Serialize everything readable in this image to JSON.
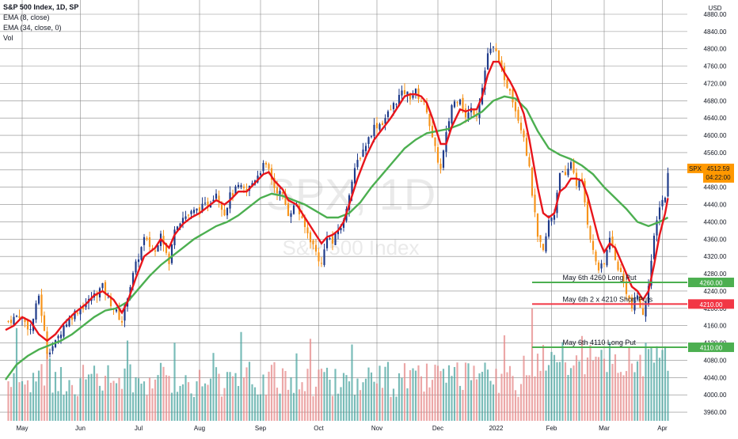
{
  "chart_data": {
    "type": "candlestick",
    "title": "S&P 500 Index, 1D, SP",
    "indicators": [
      "EMA (8, close)",
      "EMA (34, close, 0)",
      "Vol"
    ],
    "watermark": {
      "symbol": "SPX, 1D",
      "name": "S&P 500 Index"
    },
    "y_axis": {
      "unit": "USD",
      "ylim": [
        3940,
        4880
      ],
      "ticks": [
        "4880.00",
        "4840.00",
        "4800.00",
        "4760.00",
        "4720.00",
        "4680.00",
        "4640.00",
        "4600.00",
        "4560.00",
        "4520.00",
        "4480.00",
        "4440.00",
        "4400.00",
        "4360.00",
        "4320.00",
        "4280.00",
        "4240.00",
        "4200.00",
        "4160.00",
        "4120.00",
        "4080.00",
        "4040.00",
        "4000.00",
        "3960.00"
      ]
    },
    "x_axis": {
      "labels": [
        {
          "label": "May",
          "t": 5
        },
        {
          "label": "Jun",
          "t": 26
        },
        {
          "label": "Jul",
          "t": 47
        },
        {
          "label": "Aug",
          "t": 69
        },
        {
          "label": "Sep",
          "t": 91
        },
        {
          "label": "Oct",
          "t": 112
        },
        {
          "label": "Nov",
          "t": 133
        },
        {
          "label": "Dec",
          "t": 155
        },
        {
          "label": "2022",
          "t": 176
        },
        {
          "label": "Feb",
          "t": 196
        },
        {
          "label": "Mar",
          "t": 215
        },
        {
          "label": "Apr",
          "t": 236
        }
      ],
      "t_range": [
        -3,
        245
      ]
    },
    "price_anchors": [
      [
        0,
        4170
      ],
      [
        4,
        4185
      ],
      [
        8,
        4150
      ],
      [
        11,
        4230
      ],
      [
        14,
        4100
      ],
      [
        17,
        4120
      ],
      [
        20,
        4160
      ],
      [
        24,
        4190
      ],
      [
        28,
        4210
      ],
      [
        31,
        4230
      ],
      [
        34,
        4250
      ],
      [
        38,
        4200
      ],
      [
        41,
        4170
      ],
      [
        43,
        4230
      ],
      [
        46,
        4300
      ],
      [
        49,
        4360
      ],
      [
        53,
        4330
      ],
      [
        55,
        4380
      ],
      [
        58,
        4300
      ],
      [
        60,
        4390
      ],
      [
        63,
        4410
      ],
      [
        66,
        4420
      ],
      [
        69,
        4430
      ],
      [
        72,
        4440
      ],
      [
        75,
        4470
      ],
      [
        78,
        4420
      ],
      [
        80,
        4460
      ],
      [
        83,
        4480
      ],
      [
        86,
        4470
      ],
      [
        89,
        4500
      ],
      [
        92,
        4530
      ],
      [
        94,
        4520
      ],
      [
        96,
        4480
      ],
      [
        99,
        4460
      ],
      [
        101,
        4420
      ],
      [
        104,
        4440
      ],
      [
        106,
        4400
      ],
      [
        109,
        4360
      ],
      [
        111,
        4330
      ],
      [
        113,
        4300
      ],
      [
        115,
        4370
      ],
      [
        117,
        4350
      ],
      [
        119,
        4380
      ],
      [
        121,
        4400
      ],
      [
        123,
        4470
      ],
      [
        126,
        4540
      ],
      [
        129,
        4580
      ],
      [
        132,
        4620
      ],
      [
        135,
        4630
      ],
      [
        138,
        4660
      ],
      [
        141,
        4690
      ],
      [
        143,
        4700
      ],
      [
        145,
        4690
      ],
      [
        147,
        4700
      ],
      [
        149,
        4680
      ],
      [
        151,
        4660
      ],
      [
        153,
        4590
      ],
      [
        156,
        4520
      ],
      [
        158,
        4600
      ],
      [
        160,
        4670
      ],
      [
        163,
        4690
      ],
      [
        165,
        4640
      ],
      [
        167,
        4660
      ],
      [
        169,
        4650
      ],
      [
        171,
        4710
      ],
      [
        173,
        4790
      ],
      [
        175,
        4800
      ],
      [
        177,
        4780
      ],
      [
        179,
        4720
      ],
      [
        181,
        4710
      ],
      [
        183,
        4660
      ],
      [
        186,
        4600
      ],
      [
        188,
        4520
      ],
      [
        191,
        4360
      ],
      [
        193,
        4330
      ],
      [
        195,
        4400
      ],
      [
        197,
        4420
      ],
      [
        199,
        4520
      ],
      [
        201,
        4500
      ],
      [
        203,
        4540
      ],
      [
        205,
        4490
      ],
      [
        207,
        4490
      ],
      [
        209,
        4400
      ],
      [
        211,
        4330
      ],
      [
        213,
        4290
      ],
      [
        215,
        4300
      ],
      [
        217,
        4370
      ],
      [
        219,
        4310
      ],
      [
        221,
        4280
      ],
      [
        223,
        4240
      ],
      [
        225,
        4200
      ],
      [
        227,
        4230
      ],
      [
        229,
        4180
      ],
      [
        231,
        4260
      ],
      [
        233,
        4360
      ],
      [
        235,
        4440
      ],
      [
        237,
        4460
      ],
      [
        238,
        4510
      ]
    ],
    "ema8": [
      [
        -1,
        4150
      ],
      [
        2,
        4160
      ],
      [
        5,
        4180
      ],
      [
        8,
        4170
      ],
      [
        11,
        4140
      ],
      [
        14,
        4125
      ],
      [
        17,
        4140
      ],
      [
        20,
        4165
      ],
      [
        24,
        4190
      ],
      [
        28,
        4210
      ],
      [
        31,
        4230
      ],
      [
        34,
        4240
      ],
      [
        38,
        4220
      ],
      [
        41,
        4190
      ],
      [
        43,
        4215
      ],
      [
        46,
        4270
      ],
      [
        49,
        4320
      ],
      [
        53,
        4340
      ],
      [
        55,
        4360
      ],
      [
        58,
        4340
      ],
      [
        60,
        4370
      ],
      [
        63,
        4395
      ],
      [
        66,
        4410
      ],
      [
        69,
        4420
      ],
      [
        72,
        4435
      ],
      [
        75,
        4450
      ],
      [
        78,
        4440
      ],
      [
        80,
        4450
      ],
      [
        83,
        4470
      ],
      [
        86,
        4470
      ],
      [
        89,
        4490
      ],
      [
        92,
        4510
      ],
      [
        94,
        4515
      ],
      [
        96,
        4495
      ],
      [
        99,
        4475
      ],
      [
        101,
        4450
      ],
      [
        104,
        4440
      ],
      [
        106,
        4420
      ],
      [
        109,
        4390
      ],
      [
        111,
        4370
      ],
      [
        113,
        4350
      ],
      [
        115,
        4365
      ],
      [
        117,
        4370
      ],
      [
        119,
        4380
      ],
      [
        121,
        4400
      ],
      [
        123,
        4440
      ],
      [
        126,
        4500
      ],
      [
        129,
        4550
      ],
      [
        132,
        4590
      ],
      [
        135,
        4615
      ],
      [
        138,
        4640
      ],
      [
        141,
        4670
      ],
      [
        143,
        4690
      ],
      [
        145,
        4695
      ],
      [
        147,
        4695
      ],
      [
        149,
        4690
      ],
      [
        151,
        4675
      ],
      [
        153,
        4640
      ],
      [
        156,
        4580
      ],
      [
        158,
        4580
      ],
      [
        160,
        4620
      ],
      [
        163,
        4660
      ],
      [
        165,
        4655
      ],
      [
        167,
        4660
      ],
      [
        169,
        4660
      ],
      [
        171,
        4690
      ],
      [
        173,
        4740
      ],
      [
        175,
        4770
      ],
      [
        177,
        4770
      ],
      [
        179,
        4745
      ],
      [
        181,
        4725
      ],
      [
        183,
        4700
      ],
      [
        186,
        4650
      ],
      [
        188,
        4590
      ],
      [
        191,
        4480
      ],
      [
        193,
        4420
      ],
      [
        195,
        4410
      ],
      [
        197,
        4420
      ],
      [
        199,
        4470
      ],
      [
        201,
        4480
      ],
      [
        203,
        4500
      ],
      [
        205,
        4500
      ],
      [
        207,
        4495
      ],
      [
        209,
        4460
      ],
      [
        211,
        4410
      ],
      [
        213,
        4360
      ],
      [
        215,
        4330
      ],
      [
        217,
        4350
      ],
      [
        219,
        4340
      ],
      [
        221,
        4310
      ],
      [
        223,
        4280
      ],
      [
        225,
        4250
      ],
      [
        227,
        4240
      ],
      [
        229,
        4220
      ],
      [
        231,
        4240
      ],
      [
        233,
        4300
      ],
      [
        235,
        4370
      ],
      [
        237,
        4420
      ],
      [
        238,
        4455
      ]
    ],
    "ema34": [
      [
        -1,
        4035
      ],
      [
        3,
        4070
      ],
      [
        7,
        4090
      ],
      [
        11,
        4105
      ],
      [
        15,
        4115
      ],
      [
        19,
        4125
      ],
      [
        23,
        4140
      ],
      [
        27,
        4160
      ],
      [
        31,
        4180
      ],
      [
        35,
        4195
      ],
      [
        39,
        4200
      ],
      [
        43,
        4215
      ],
      [
        47,
        4245
      ],
      [
        51,
        4275
      ],
      [
        55,
        4300
      ],
      [
        59,
        4320
      ],
      [
        63,
        4340
      ],
      [
        67,
        4360
      ],
      [
        71,
        4375
      ],
      [
        75,
        4390
      ],
      [
        79,
        4400
      ],
      [
        83,
        4415
      ],
      [
        87,
        4435
      ],
      [
        91,
        4455
      ],
      [
        95,
        4465
      ],
      [
        99,
        4460
      ],
      [
        103,
        4450
      ],
      [
        107,
        4440
      ],
      [
        111,
        4425
      ],
      [
        115,
        4410
      ],
      [
        119,
        4410
      ],
      [
        123,
        4420
      ],
      [
        127,
        4445
      ],
      [
        131,
        4480
      ],
      [
        135,
        4510
      ],
      [
        139,
        4540
      ],
      [
        143,
        4570
      ],
      [
        147,
        4590
      ],
      [
        151,
        4605
      ],
      [
        155,
        4610
      ],
      [
        159,
        4615
      ],
      [
        163,
        4625
      ],
      [
        167,
        4640
      ],
      [
        171,
        4655
      ],
      [
        175,
        4680
      ],
      [
        179,
        4690
      ],
      [
        183,
        4685
      ],
      [
        187,
        4660
      ],
      [
        191,
        4610
      ],
      [
        195,
        4570
      ],
      [
        199,
        4555
      ],
      [
        203,
        4545
      ],
      [
        207,
        4530
      ],
      [
        211,
        4510
      ],
      [
        215,
        4480
      ],
      [
        219,
        4455
      ],
      [
        223,
        4430
      ],
      [
        227,
        4400
      ],
      [
        231,
        4390
      ],
      [
        235,
        4400
      ],
      [
        238,
        4410
      ]
    ],
    "horizontal_levels": [
      {
        "label": "May 6th 4260 Long Put",
        "value": 4260,
        "tag": "4260.00",
        "color": "#4caf50"
      },
      {
        "label": "May 6th 2 x 4210 Short Puts",
        "value": 4210,
        "tag": "4210.00",
        "color": "#f23645"
      },
      {
        "label": "May 6th 4110 Long Put",
        "value": 4110,
        "tag": "4110.00",
        "color": "#4caf50"
      }
    ],
    "last_price": {
      "symbol": "SPX",
      "value": "4512.59",
      "countdown": "04:22:00",
      "color": "#ff9800"
    },
    "colors": {
      "up": "#1e3a8a",
      "down": "#f7931a",
      "ema8": "#e8151b",
      "ema34": "#4caf50",
      "vol_up": "#4ca6a0",
      "vol_down": "#e68a8a",
      "grid": "#8a8a8a",
      "bg": "#ffffff"
    }
  }
}
